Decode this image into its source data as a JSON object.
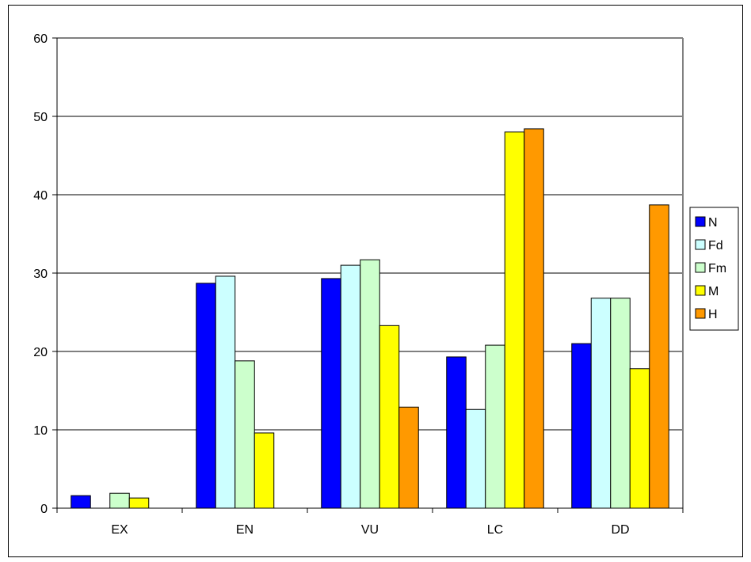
{
  "chart_data": {
    "type": "bar",
    "categories": [
      "EX",
      "EN",
      "VU",
      "LC",
      "DD"
    ],
    "series": [
      {
        "name": "N",
        "color": "#0000FF",
        "values": [
          1.6,
          28.7,
          29.3,
          19.3,
          21.0
        ]
      },
      {
        "name": "Fd",
        "color": "#CCFFFF",
        "values": [
          0,
          29.6,
          31.0,
          12.6,
          26.8
        ]
      },
      {
        "name": "Fm",
        "color": "#CCFFCC",
        "values": [
          1.9,
          18.8,
          31.7,
          20.8,
          26.8
        ]
      },
      {
        "name": "M",
        "color": "#FFFF00",
        "values": [
          1.3,
          9.6,
          23.3,
          48.0,
          17.8
        ]
      },
      {
        "name": "H",
        "color": "#FF9900",
        "values": [
          0,
          0,
          12.9,
          48.4,
          38.7
        ]
      }
    ],
    "ylim": [
      0,
      60
    ],
    "yticks": [
      0,
      10,
      20,
      30,
      40,
      50,
      60
    ],
    "grid": true,
    "legend_position": "right",
    "title": "",
    "xlabel": "",
    "ylabel": ""
  }
}
